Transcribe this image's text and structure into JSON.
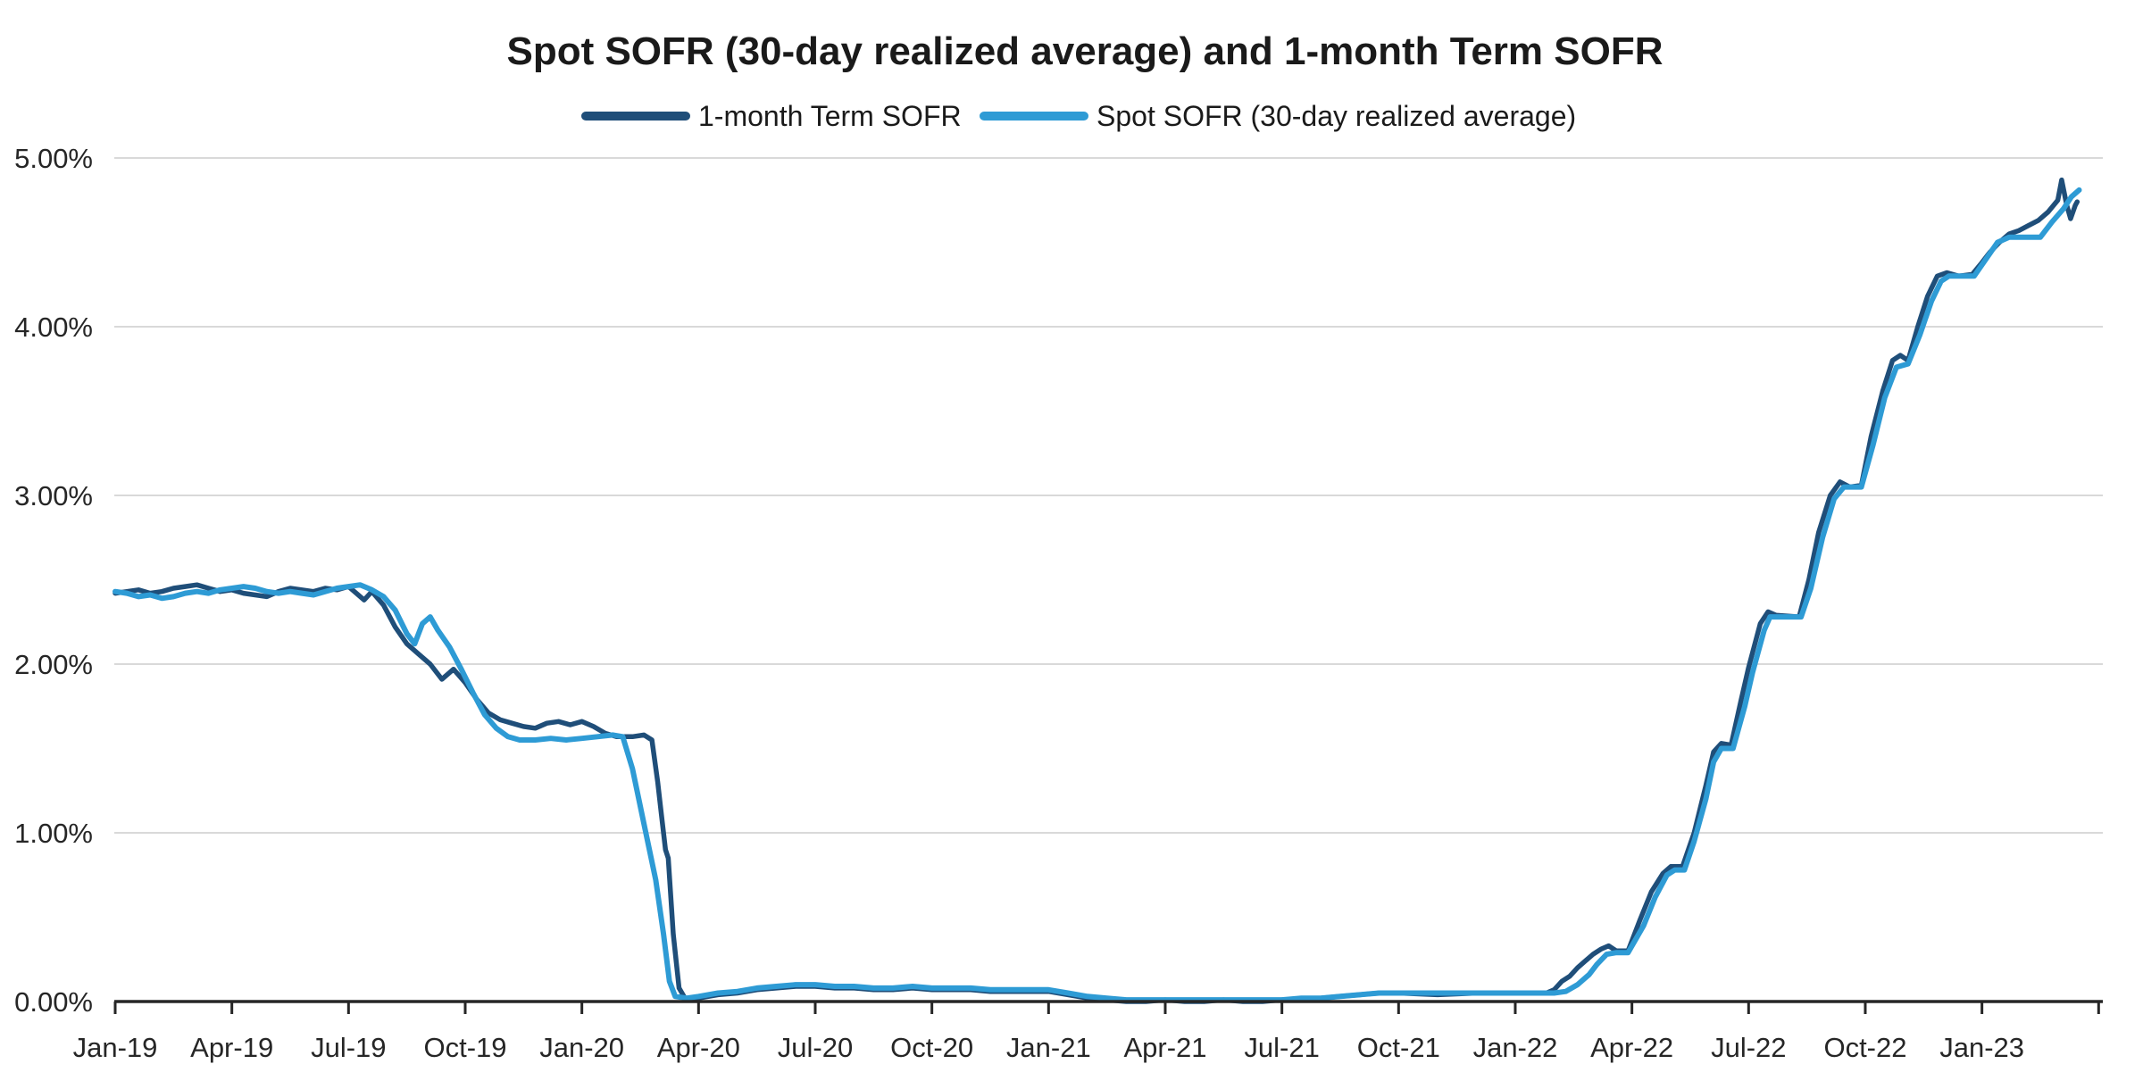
{
  "page": {
    "background": "#ffffff"
  },
  "chart_data": {
    "type": "line",
    "title": "Spot SOFR (30-day realized average) and 1-month Term SOFR",
    "x_axis": {
      "unit": "months since Jan-2019",
      "tick_interval_months": 3,
      "range_months": [
        0,
        51.2
      ],
      "tick_labels": [
        "Jan-19",
        "Apr-19",
        "Jul-19",
        "Oct-19",
        "Jan-20",
        "Apr-20",
        "Jul-20",
        "Oct-20",
        "Jan-21",
        "Apr-21",
        "Jul-21",
        "Oct-21",
        "Jan-22",
        "Apr-22",
        "Jul-22",
        "Oct-22",
        "Jan-23"
      ],
      "unlabeled_extra_tick_month": 51
    },
    "y_axis": {
      "min": 0,
      "max": 5,
      "grid": true,
      "gridline_color": "#d9d9d9",
      "axis_line_color": "#262626",
      "tick_labels": [
        "0.00%",
        "1.00%",
        "2.00%",
        "3.00%",
        "4.00%",
        "5.00%"
      ]
    },
    "legend": {
      "position": "top-center",
      "items": [
        {
          "label": "1-month Term SOFR",
          "color": "#1f4e79"
        },
        {
          "label": "Spot SOFR (30-day realized average)",
          "color": "#2e9bd5"
        }
      ]
    },
    "series": [
      {
        "name": "1-month Term SOFR",
        "color": "#1f4e79",
        "points": [
          [
            0,
            2.42
          ],
          [
            0.3,
            2.43
          ],
          [
            0.6,
            2.44
          ],
          [
            0.9,
            2.42
          ],
          [
            1.2,
            2.43
          ],
          [
            1.5,
            2.45
          ],
          [
            1.8,
            2.46
          ],
          [
            2.1,
            2.47
          ],
          [
            2.4,
            2.45
          ],
          [
            2.7,
            2.43
          ],
          [
            3,
            2.44
          ],
          [
            3.3,
            2.42
          ],
          [
            3.6,
            2.41
          ],
          [
            3.9,
            2.4
          ],
          [
            4.2,
            2.43
          ],
          [
            4.5,
            2.45
          ],
          [
            4.8,
            2.44
          ],
          [
            5.1,
            2.43
          ],
          [
            5.4,
            2.45
          ],
          [
            5.7,
            2.44
          ],
          [
            6,
            2.46
          ],
          [
            6.2,
            2.42
          ],
          [
            6.4,
            2.38
          ],
          [
            6.6,
            2.43
          ],
          [
            6.9,
            2.35
          ],
          [
            7.2,
            2.22
          ],
          [
            7.5,
            2.12
          ],
          [
            7.8,
            2.06
          ],
          [
            8.1,
            2.0
          ],
          [
            8.4,
            1.91
          ],
          [
            8.7,
            1.97
          ],
          [
            9,
            1.89
          ],
          [
            9.3,
            1.79
          ],
          [
            9.6,
            1.71
          ],
          [
            9.9,
            1.67
          ],
          [
            10.2,
            1.65
          ],
          [
            10.5,
            1.63
          ],
          [
            10.8,
            1.62
          ],
          [
            11.1,
            1.65
          ],
          [
            11.4,
            1.66
          ],
          [
            11.7,
            1.64
          ],
          [
            12,
            1.66
          ],
          [
            12.3,
            1.63
          ],
          [
            12.6,
            1.59
          ],
          [
            12.9,
            1.57
          ],
          [
            13.3,
            1.57
          ],
          [
            13.6,
            1.58
          ],
          [
            13.8,
            1.55
          ],
          [
            13.95,
            1.3
          ],
          [
            14.05,
            1.1
          ],
          [
            14.15,
            0.9
          ],
          [
            14.22,
            0.85
          ],
          [
            14.35,
            0.4
          ],
          [
            14.5,
            0.08
          ],
          [
            14.65,
            0.02
          ],
          [
            15,
            0.02
          ],
          [
            15.5,
            0.04
          ],
          [
            16,
            0.05
          ],
          [
            16.5,
            0.07
          ],
          [
            17,
            0.08
          ],
          [
            17.5,
            0.09
          ],
          [
            18,
            0.09
          ],
          [
            18.5,
            0.08
          ],
          [
            19,
            0.08
          ],
          [
            19.5,
            0.07
          ],
          [
            20,
            0.07
          ],
          [
            20.5,
            0.08
          ],
          [
            21,
            0.07
          ],
          [
            21.5,
            0.07
          ],
          [
            22,
            0.07
          ],
          [
            22.5,
            0.06
          ],
          [
            23,
            0.06
          ],
          [
            23.5,
            0.06
          ],
          [
            24,
            0.06
          ],
          [
            24.5,
            0.04
          ],
          [
            25,
            0.02
          ],
          [
            25.5,
            0.01
          ],
          [
            26,
            0.0
          ],
          [
            26.5,
            0.0
          ],
          [
            27,
            0.01
          ],
          [
            27.5,
            0.0
          ],
          [
            28,
            0.0
          ],
          [
            28.5,
            0.01
          ],
          [
            29,
            0.0
          ],
          [
            29.5,
            0.0
          ],
          [
            30,
            0.01
          ],
          [
            30.5,
            0.01
          ],
          [
            31,
            0.02
          ],
          [
            31.5,
            0.03
          ],
          [
            32,
            0.04
          ],
          [
            32.5,
            0.05
          ],
          [
            33,
            0.05
          ],
          [
            34,
            0.04
          ],
          [
            35,
            0.05
          ],
          [
            36,
            0.05
          ],
          [
            36.8,
            0.05
          ],
          [
            37,
            0.07
          ],
          [
            37.2,
            0.12
          ],
          [
            37.4,
            0.15
          ],
          [
            37.6,
            0.2
          ],
          [
            37.8,
            0.24
          ],
          [
            38,
            0.28
          ],
          [
            38.2,
            0.31
          ],
          [
            38.4,
            0.33
          ],
          [
            38.6,
            0.3
          ],
          [
            38.9,
            0.3
          ],
          [
            39.2,
            0.48
          ],
          [
            39.5,
            0.65
          ],
          [
            39.8,
            0.76
          ],
          [
            40,
            0.8
          ],
          [
            40.3,
            0.8
          ],
          [
            40.6,
            1.0
          ],
          [
            40.9,
            1.28
          ],
          [
            41.1,
            1.48
          ],
          [
            41.3,
            1.53
          ],
          [
            41.55,
            1.52
          ],
          [
            41.8,
            1.78
          ],
          [
            42,
            1.98
          ],
          [
            42.3,
            2.24
          ],
          [
            42.5,
            2.31
          ],
          [
            42.7,
            2.29
          ],
          [
            43.3,
            2.28
          ],
          [
            43.55,
            2.5
          ],
          [
            43.8,
            2.78
          ],
          [
            44.1,
            3.0
          ],
          [
            44.35,
            3.08
          ],
          [
            44.6,
            3.05
          ],
          [
            44.9,
            3.06
          ],
          [
            45.15,
            3.35
          ],
          [
            45.45,
            3.62
          ],
          [
            45.7,
            3.8
          ],
          [
            45.9,
            3.83
          ],
          [
            46.1,
            3.8
          ],
          [
            46.35,
            4.0
          ],
          [
            46.6,
            4.18
          ],
          [
            46.85,
            4.3
          ],
          [
            47.1,
            4.32
          ],
          [
            47.4,
            4.3
          ],
          [
            47.75,
            4.31
          ],
          [
            48,
            4.38
          ],
          [
            48.2,
            4.44
          ],
          [
            48.45,
            4.5
          ],
          [
            48.7,
            4.55
          ],
          [
            48.95,
            4.57
          ],
          [
            49.2,
            4.6
          ],
          [
            49.45,
            4.63
          ],
          [
            49.7,
            4.68
          ],
          [
            49.95,
            4.75
          ],
          [
            50.05,
            4.87
          ],
          [
            50.18,
            4.72
          ],
          [
            50.28,
            4.64
          ],
          [
            50.4,
            4.72
          ],
          [
            50.45,
            4.74
          ]
        ]
      },
      {
        "name": "Spot SOFR (30-day realized average)",
        "color": "#2e9bd5",
        "points": [
          [
            0,
            2.43
          ],
          [
            0.3,
            2.42
          ],
          [
            0.6,
            2.4
          ],
          [
            0.9,
            2.41
          ],
          [
            1.2,
            2.39
          ],
          [
            1.5,
            2.4
          ],
          [
            1.8,
            2.42
          ],
          [
            2.1,
            2.43
          ],
          [
            2.4,
            2.42
          ],
          [
            2.7,
            2.44
          ],
          [
            3,
            2.45
          ],
          [
            3.3,
            2.46
          ],
          [
            3.6,
            2.45
          ],
          [
            3.9,
            2.43
          ],
          [
            4.2,
            2.42
          ],
          [
            4.5,
            2.43
          ],
          [
            4.8,
            2.42
          ],
          [
            5.1,
            2.41
          ],
          [
            5.4,
            2.43
          ],
          [
            5.7,
            2.45
          ],
          [
            6,
            2.46
          ],
          [
            6.3,
            2.47
          ],
          [
            6.6,
            2.44
          ],
          [
            6.9,
            2.4
          ],
          [
            7.2,
            2.32
          ],
          [
            7.5,
            2.18
          ],
          [
            7.7,
            2.12
          ],
          [
            7.9,
            2.24
          ],
          [
            8.1,
            2.28
          ],
          [
            8.3,
            2.2
          ],
          [
            8.6,
            2.1
          ],
          [
            8.9,
            1.97
          ],
          [
            9.2,
            1.83
          ],
          [
            9.5,
            1.7
          ],
          [
            9.8,
            1.62
          ],
          [
            10.1,
            1.57
          ],
          [
            10.4,
            1.55
          ],
          [
            10.8,
            1.55
          ],
          [
            11.2,
            1.56
          ],
          [
            11.6,
            1.55
          ],
          [
            12,
            1.56
          ],
          [
            12.4,
            1.57
          ],
          [
            12.8,
            1.58
          ],
          [
            13.05,
            1.57
          ],
          [
            13.3,
            1.38
          ],
          [
            13.6,
            1.05
          ],
          [
            13.9,
            0.72
          ],
          [
            14.1,
            0.4
          ],
          [
            14.25,
            0.12
          ],
          [
            14.4,
            0.03
          ],
          [
            14.7,
            0.02
          ],
          [
            15,
            0.03
          ],
          [
            15.5,
            0.05
          ],
          [
            16,
            0.06
          ],
          [
            16.5,
            0.08
          ],
          [
            17,
            0.09
          ],
          [
            17.5,
            0.1
          ],
          [
            18,
            0.1
          ],
          [
            18.5,
            0.09
          ],
          [
            19,
            0.09
          ],
          [
            19.5,
            0.08
          ],
          [
            20,
            0.08
          ],
          [
            20.5,
            0.09
          ],
          [
            21,
            0.08
          ],
          [
            21.5,
            0.08
          ],
          [
            22,
            0.08
          ],
          [
            22.5,
            0.07
          ],
          [
            23,
            0.07
          ],
          [
            23.5,
            0.07
          ],
          [
            24,
            0.07
          ],
          [
            24.5,
            0.05
          ],
          [
            25,
            0.03
          ],
          [
            25.5,
            0.02
          ],
          [
            26,
            0.01
          ],
          [
            26.5,
            0.01
          ],
          [
            27,
            0.01
          ],
          [
            27.5,
            0.01
          ],
          [
            28,
            0.01
          ],
          [
            28.5,
            0.01
          ],
          [
            29,
            0.01
          ],
          [
            29.5,
            0.01
          ],
          [
            30,
            0.01
          ],
          [
            30.5,
            0.02
          ],
          [
            31,
            0.02
          ],
          [
            31.5,
            0.03
          ],
          [
            32,
            0.04
          ],
          [
            32.5,
            0.05
          ],
          [
            33,
            0.05
          ],
          [
            34,
            0.05
          ],
          [
            35,
            0.05
          ],
          [
            36,
            0.05
          ],
          [
            37,
            0.05
          ],
          [
            37.3,
            0.06
          ],
          [
            37.6,
            0.1
          ],
          [
            37.9,
            0.16
          ],
          [
            38.1,
            0.22
          ],
          [
            38.35,
            0.28
          ],
          [
            38.6,
            0.29
          ],
          [
            38.9,
            0.29
          ],
          [
            39.3,
            0.45
          ],
          [
            39.6,
            0.62
          ],
          [
            39.9,
            0.75
          ],
          [
            40.1,
            0.78
          ],
          [
            40.35,
            0.78
          ],
          [
            40.6,
            0.95
          ],
          [
            40.9,
            1.2
          ],
          [
            41.1,
            1.42
          ],
          [
            41.3,
            1.5
          ],
          [
            41.6,
            1.5
          ],
          [
            41.9,
            1.75
          ],
          [
            42.1,
            1.95
          ],
          [
            42.4,
            2.2
          ],
          [
            42.55,
            2.28
          ],
          [
            43.35,
            2.28
          ],
          [
            43.6,
            2.45
          ],
          [
            43.9,
            2.75
          ],
          [
            44.2,
            2.98
          ],
          [
            44.45,
            3.05
          ],
          [
            44.9,
            3.05
          ],
          [
            45.2,
            3.3
          ],
          [
            45.5,
            3.58
          ],
          [
            45.8,
            3.76
          ],
          [
            46.1,
            3.78
          ],
          [
            46.4,
            3.95
          ],
          [
            46.7,
            4.15
          ],
          [
            46.95,
            4.27
          ],
          [
            47.15,
            4.3
          ],
          [
            47.8,
            4.3
          ],
          [
            48.1,
            4.4
          ],
          [
            48.4,
            4.5
          ],
          [
            48.7,
            4.53
          ],
          [
            49.5,
            4.53
          ],
          [
            49.8,
            4.62
          ],
          [
            50.1,
            4.7
          ],
          [
            50.3,
            4.77
          ],
          [
            50.5,
            4.81
          ]
        ]
      }
    ]
  }
}
